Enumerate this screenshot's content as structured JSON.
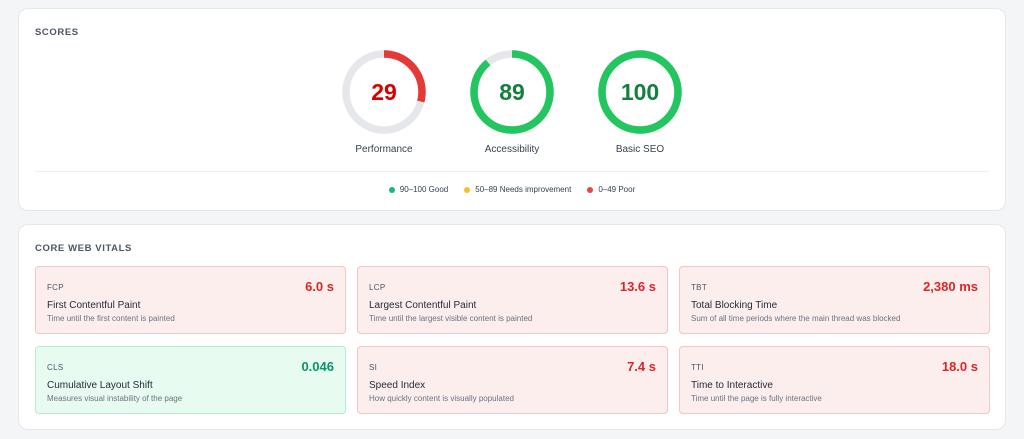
{
  "scores": {
    "title": "SCORES",
    "gauges": [
      {
        "value": "29",
        "score": 29,
        "label": "Performance",
        "color": "#e53935",
        "text_color": "#d50000"
      },
      {
        "value": "89",
        "score": 89,
        "label": "Accessibility",
        "color": "#22c55e",
        "text_color": "#15803d"
      },
      {
        "value": "100",
        "score": 100,
        "label": "Basic SEO",
        "color": "#22c55e",
        "text_color": "#15803d"
      }
    ],
    "track_color": "#e5e7eb",
    "legend": [
      {
        "label": "90–100 Good",
        "color": "#10b981"
      },
      {
        "label": "50–89 Needs improvement",
        "color": "#fbbf24"
      },
      {
        "label": "0–49 Poor",
        "color": "#ef4444"
      }
    ]
  },
  "vitals": {
    "title": "CORE WEB VITALS",
    "metrics": [
      {
        "abbr": "FCP",
        "value": "6.0 s",
        "name": "First Contentful Paint",
        "desc": "Time until the first content is painted",
        "status": "poor"
      },
      {
        "abbr": "LCP",
        "value": "13.6 s",
        "name": "Largest Contentful Paint",
        "desc": "Time until the largest visible content is painted",
        "status": "poor"
      },
      {
        "abbr": "TBT",
        "value": "2,380 ms",
        "name": "Total Blocking Time",
        "desc": "Sum of all time periods where the main thread was blocked",
        "status": "poor"
      },
      {
        "abbr": "CLS",
        "value": "0.046",
        "name": "Cumulative Layout Shift",
        "desc": "Measures visual instability of the page",
        "status": "good"
      },
      {
        "abbr": "SI",
        "value": "7.4 s",
        "name": "Speed Index",
        "desc": "How quickly content is visually populated",
        "status": "poor"
      },
      {
        "abbr": "TTI",
        "value": "18.0 s",
        "name": "Time to Interactive",
        "desc": "Time until the page is fully interactive",
        "status": "poor"
      }
    ]
  }
}
